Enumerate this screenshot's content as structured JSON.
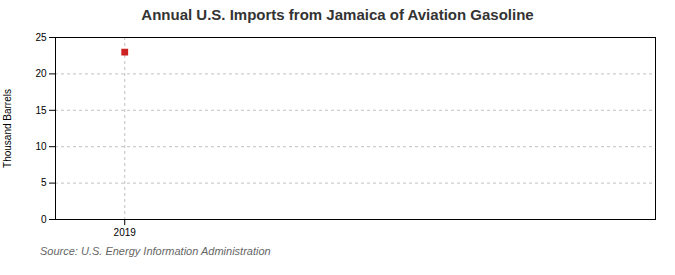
{
  "chart_data": {
    "type": "scatter",
    "title": "Annual U.S. Imports from Jamaica of Aviation Gasoline",
    "ylabel": "Thousand Barrels",
    "source": "Source: U.S. Energy Information Administration",
    "x": [
      2019
    ],
    "values": [
      23
    ],
    "color": "#cc2222",
    "marker": "square",
    "xlim": [
      2018.4,
      2023.6
    ],
    "xticks": [
      2019
    ],
    "ylim": [
      0,
      25
    ],
    "yticks": [
      0,
      5,
      10,
      15,
      20,
      25
    ],
    "grid": true
  }
}
